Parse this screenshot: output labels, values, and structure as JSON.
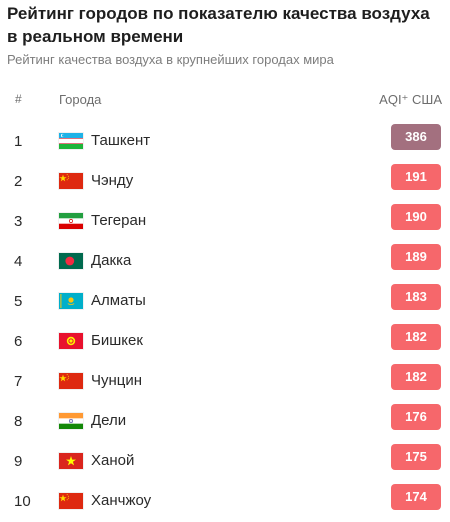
{
  "title": "Рейтинг городов по показателю качества воздуха в реальном времени",
  "subtitle": "Рейтинг качества воздуха в крупнейших городах мира",
  "table": {
    "col_num": "#",
    "col_city": "Города",
    "col_aqi": "AQI⁺ США"
  },
  "colors": {
    "hazardous": "#a3707f",
    "unhealthy": "#f6676b"
  },
  "rows": [
    {
      "rank": "1",
      "city": "Ташкент",
      "aqi": "386",
      "flag": "uzbekistan-flag-icon",
      "level": "hazardous"
    },
    {
      "rank": "2",
      "city": "Чэнду",
      "aqi": "191",
      "flag": "china-flag-icon",
      "level": "unhealthy"
    },
    {
      "rank": "3",
      "city": "Тегеран",
      "aqi": "190",
      "flag": "iran-flag-icon",
      "level": "unhealthy"
    },
    {
      "rank": "4",
      "city": "Дакка",
      "aqi": "189",
      "flag": "bangladesh-flag-icon",
      "level": "unhealthy"
    },
    {
      "rank": "5",
      "city": "Алматы",
      "aqi": "183",
      "flag": "kazakhstan-flag-icon",
      "level": "unhealthy"
    },
    {
      "rank": "6",
      "city": "Бишкек",
      "aqi": "182",
      "flag": "kyrgyzstan-flag-icon",
      "level": "unhealthy"
    },
    {
      "rank": "7",
      "city": "Чунцин",
      "aqi": "182",
      "flag": "china-flag-icon",
      "level": "unhealthy"
    },
    {
      "rank": "8",
      "city": "Дели",
      "aqi": "176",
      "flag": "india-flag-icon",
      "level": "unhealthy"
    },
    {
      "rank": "9",
      "city": "Ханой",
      "aqi": "175",
      "flag": "vietnam-flag-icon",
      "level": "unhealthy"
    },
    {
      "rank": "10",
      "city": "Ханчжоу",
      "aqi": "174",
      "flag": "china-flag-icon",
      "level": "unhealthy"
    }
  ]
}
